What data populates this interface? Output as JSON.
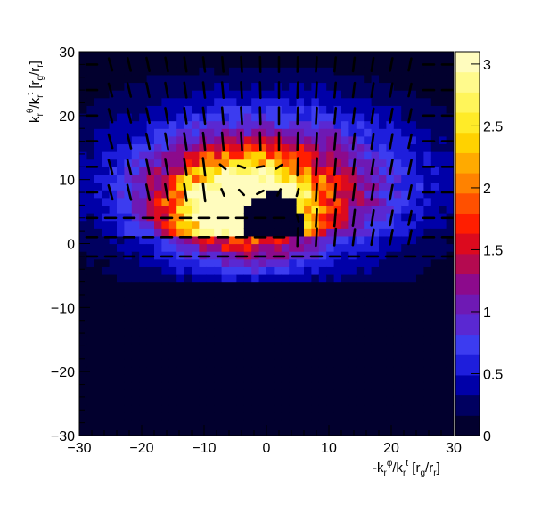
{
  "chart_data": {
    "type": "heatmap",
    "title": "",
    "xlabel": "-k_r^φ/k_r^t [r_g/r_r]",
    "ylabel": "k_r^θ/k_r^t [r_g/r_r]",
    "xlim": [
      -30,
      30
    ],
    "ylim": [
      -30,
      30
    ],
    "x_ticks": [
      -30,
      -20,
      -10,
      0,
      10,
      20,
      30
    ],
    "y_ticks": [
      -30,
      -20,
      -10,
      0,
      10,
      20,
      30
    ],
    "x_tick_labels": [
      "−30",
      "−20",
      "−10",
      "0",
      "10",
      "20",
      "30"
    ],
    "y_tick_labels": [
      "−30",
      "−20",
      "−10",
      "0",
      "10",
      "20",
      "30"
    ],
    "colorbar": {
      "range": [
        0,
        3.1
      ],
      "ticks": [
        0,
        0.5,
        1,
        1.5,
        2,
        2.5,
        3
      ],
      "tick_labels": [
        "0",
        "0.5",
        "1",
        "1.5",
        "2",
        "2.5",
        "3"
      ],
      "palette": [
        "#02002e",
        "#000060",
        "#0000a8",
        "#1e1edc",
        "#3c3cf0",
        "#5a28d2",
        "#6e19b4",
        "#8c0a8c",
        "#b40a50",
        "#dc0a1e",
        "#ff1e00",
        "#ff5000",
        "#ff8200",
        "#ffaa00",
        "#ffd200",
        "#ffeb28",
        "#fff55a",
        "#fffa8c",
        "#fffcbe"
      ]
    },
    "heatmap_model": {
      "description": "intensity over the plane, peak near (-5, 5)",
      "background": 0,
      "shadow_center": [
        1,
        3
      ],
      "shadow_radius": 5
    },
    "vector_field": {
      "grid_x": [
        -28,
        -25,
        -22,
        -19,
        -16,
        -13,
        -10,
        -7,
        -4,
        -1,
        2,
        5,
        8,
        11,
        14,
        17,
        20,
        23,
        26,
        29
      ],
      "grid_y": [
        28,
        24,
        20,
        16,
        12,
        8,
        4,
        1,
        -2
      ]
    }
  }
}
